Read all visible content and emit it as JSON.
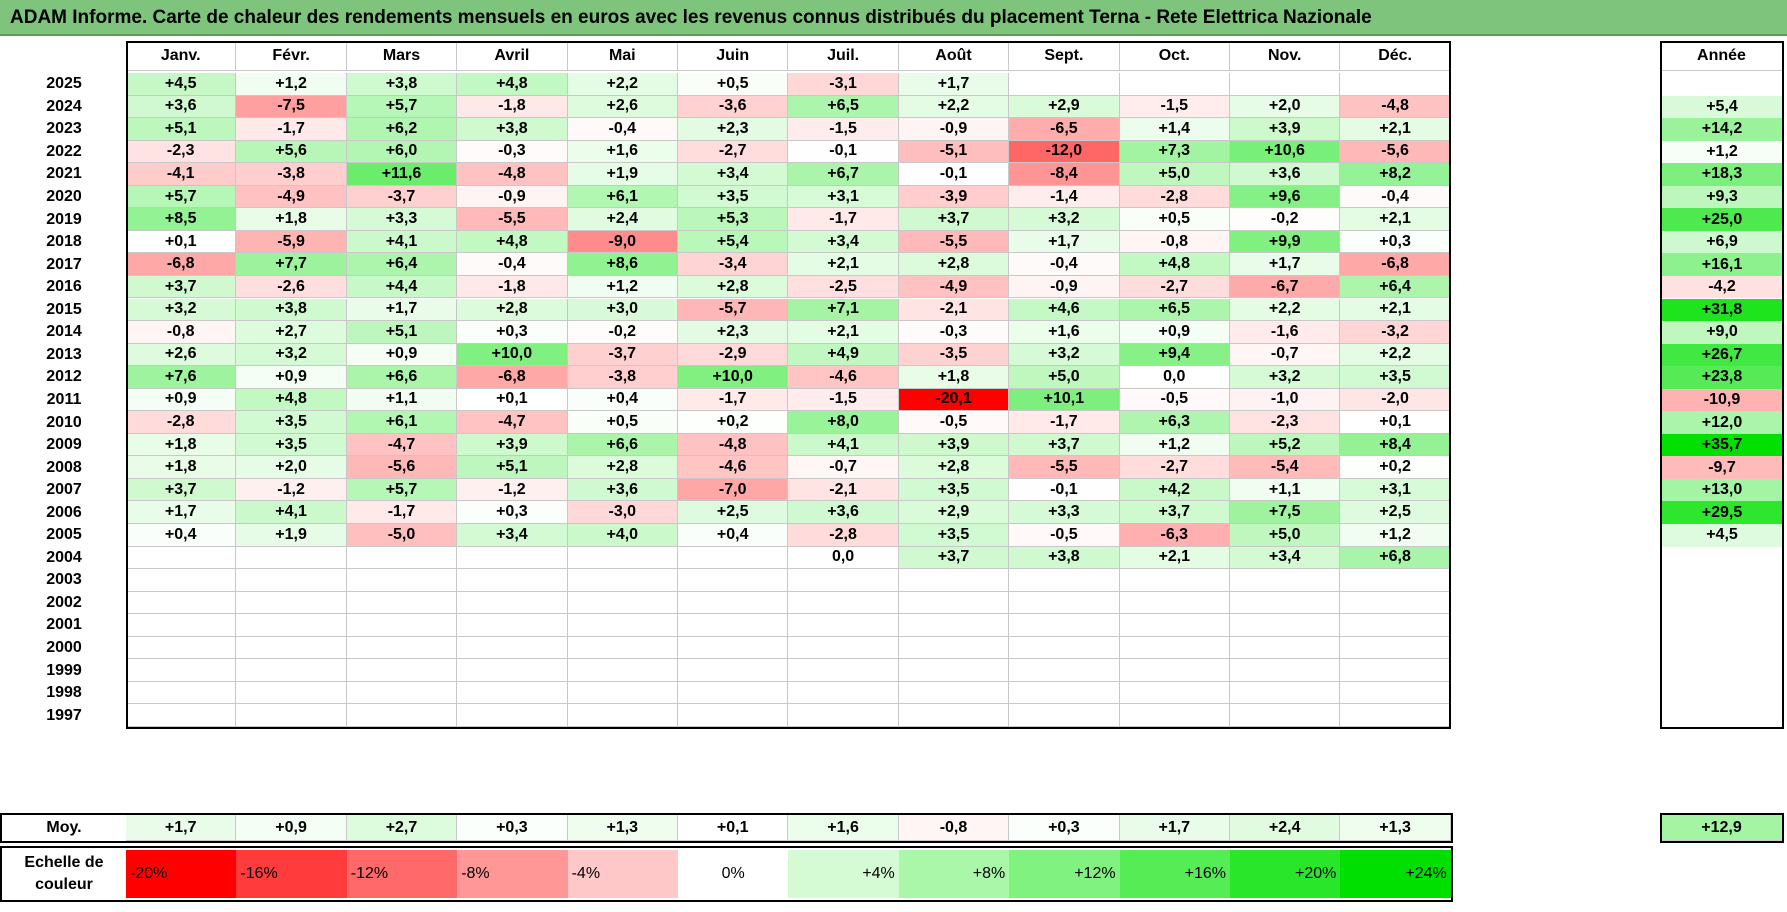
{
  "title": "ADAM Informe. Carte de chaleur des rendements mensuels en euros avec les revenus connus distribués du placement Terna - Rete Elettrica Nazionale",
  "chart_data": {
    "type": "heatmap",
    "title": "ADAM Informe. Carte de chaleur des rendements mensuels en euros avec les revenus connus distribués du placement Terna - Rete Elettrica Nazionale",
    "months": [
      "Janv.",
      "Févr.",
      "Mars",
      "Avril",
      "Mai",
      "Juin",
      "Juil.",
      "Août",
      "Sept.",
      "Oct.",
      "Nov.",
      "Déc."
    ],
    "year_header": "Année",
    "rows": [
      {
        "year": "2025",
        "months": [
          "+4,5",
          "+1,2",
          "+3,8",
          "+4,8",
          "+2,2",
          "+0,5",
          "-3,1",
          "+1,7",
          "",
          "",
          "",
          ""
        ],
        "annual": ""
      },
      {
        "year": "2024",
        "months": [
          "+3,6",
          "-7,5",
          "+5,7",
          "-1,8",
          "+2,6",
          "-3,6",
          "+6,5",
          "+2,2",
          "+2,9",
          "-1,5",
          "+2,0",
          "-4,8"
        ],
        "annual": "+5,4"
      },
      {
        "year": "2023",
        "months": [
          "+5,1",
          "-1,7",
          "+6,2",
          "+3,8",
          "-0,4",
          "+2,3",
          "-1,5",
          "-0,9",
          "-6,5",
          "+1,4",
          "+3,9",
          "+2,1"
        ],
        "annual": "+14,2"
      },
      {
        "year": "2022",
        "months": [
          "-2,3",
          "+5,6",
          "+6,0",
          "-0,3",
          "+1,6",
          "-2,7",
          "-0,1",
          "-5,1",
          "-12,0",
          "+7,3",
          "+10,6",
          "-5,6"
        ],
        "annual": "+1,2"
      },
      {
        "year": "2021",
        "months": [
          "-4,1",
          "-3,8",
          "+11,6",
          "-4,8",
          "+1,9",
          "+3,4",
          "+6,7",
          "-0,1",
          "-8,4",
          "+5,0",
          "+3,6",
          "+8,2"
        ],
        "annual": "+18,3"
      },
      {
        "year": "2020",
        "months": [
          "+5,7",
          "-4,9",
          "-3,7",
          "-0,9",
          "+6,1",
          "+3,5",
          "+3,1",
          "-3,9",
          "-1,4",
          "-2,8",
          "+9,6",
          "-0,4"
        ],
        "annual": "+9,3"
      },
      {
        "year": "2019",
        "months": [
          "+8,5",
          "+1,8",
          "+3,3",
          "-5,5",
          "+2,4",
          "+5,3",
          "-1,7",
          "+3,7",
          "+3,2",
          "+0,5",
          "-0,2",
          "+2,1"
        ],
        "annual": "+25,0"
      },
      {
        "year": "2018",
        "months": [
          "+0,1",
          "-5,9",
          "+4,1",
          "+4,8",
          "-9,0",
          "+5,4",
          "+3,4",
          "-5,5",
          "+1,7",
          "-0,8",
          "+9,9",
          "+0,3"
        ],
        "annual": "+6,9"
      },
      {
        "year": "2017",
        "months": [
          "-6,8",
          "+7,7",
          "+6,4",
          "-0,4",
          "+8,6",
          "-3,4",
          "+2,1",
          "+2,8",
          "-0,4",
          "+4,8",
          "+1,7",
          "-6,8"
        ],
        "annual": "+16,1"
      },
      {
        "year": "2016",
        "months": [
          "+3,7",
          "-2,6",
          "+4,4",
          "-1,8",
          "+1,2",
          "+2,8",
          "-2,5",
          "-4,9",
          "-0,9",
          "-2,7",
          "-6,7",
          "+6,4"
        ],
        "annual": "-4,2"
      },
      {
        "year": "2015",
        "months": [
          "+3,2",
          "+3,8",
          "+1,7",
          "+2,8",
          "+3,0",
          "-5,7",
          "+7,1",
          "-2,1",
          "+4,6",
          "+6,5",
          "+2,2",
          "+2,1"
        ],
        "annual": "+31,8"
      },
      {
        "year": "2014",
        "months": [
          "-0,8",
          "+2,7",
          "+5,1",
          "+0,3",
          "-0,2",
          "+2,3",
          "+2,1",
          "-0,3",
          "+1,6",
          "+0,9",
          "-1,6",
          "-3,2"
        ],
        "annual": "+9,0"
      },
      {
        "year": "2013",
        "months": [
          "+2,6",
          "+3,2",
          "+0,9",
          "+10,0",
          "-3,7",
          "-2,9",
          "+4,9",
          "-3,5",
          "+3,2",
          "+9,4",
          "-0,7",
          "+2,2"
        ],
        "annual": "+26,7"
      },
      {
        "year": "2012",
        "months": [
          "+7,6",
          "+0,9",
          "+6,6",
          "-6,8",
          "-3,8",
          "+10,0",
          "-4,6",
          "+1,8",
          "+5,0",
          "0,0",
          "+3,2",
          "+3,5"
        ],
        "annual": "+23,8"
      },
      {
        "year": "2011",
        "months": [
          "+0,9",
          "+4,8",
          "+1,1",
          "+0,1",
          "+0,4",
          "-1,7",
          "-1,5",
          "-20,1",
          "+10,1",
          "-0,5",
          "-1,0",
          "-2,0"
        ],
        "annual": "-10,9"
      },
      {
        "year": "2010",
        "months": [
          "-2,8",
          "+3,5",
          "+6,1",
          "-4,7",
          "+0,5",
          "+0,2",
          "+8,0",
          "-0,5",
          "-1,7",
          "+6,3",
          "-2,3",
          "+0,1"
        ],
        "annual": "+12,0"
      },
      {
        "year": "2009",
        "months": [
          "+1,8",
          "+3,5",
          "-4,7",
          "+3,9",
          "+6,6",
          "-4,8",
          "+4,1",
          "+3,9",
          "+3,7",
          "+1,2",
          "+5,2",
          "+8,4"
        ],
        "annual": "+35,7"
      },
      {
        "year": "2008",
        "months": [
          "+1,8",
          "+2,0",
          "-5,6",
          "+5,1",
          "+2,8",
          "-4,6",
          "-0,7",
          "+2,8",
          "-5,5",
          "-2,7",
          "-5,4",
          "+0,2"
        ],
        "annual": "-9,7"
      },
      {
        "year": "2007",
        "months": [
          "+3,7",
          "-1,2",
          "+5,7",
          "-1,2",
          "+3,6",
          "-7,0",
          "-2,1",
          "+3,5",
          "-0,1",
          "+4,2",
          "+1,1",
          "+3,1"
        ],
        "annual": "+13,0"
      },
      {
        "year": "2006",
        "months": [
          "+1,7",
          "+4,1",
          "-1,7",
          "+0,3",
          "-3,0",
          "+2,5",
          "+3,6",
          "+2,9",
          "+3,3",
          "+3,7",
          "+7,5",
          "+2,5"
        ],
        "annual": "+29,5"
      },
      {
        "year": "2005",
        "months": [
          "+0,4",
          "+1,9",
          "-5,0",
          "+3,4",
          "+4,0",
          "+0,4",
          "-2,8",
          "+3,5",
          "-0,5",
          "-6,3",
          "+5,0",
          "+1,2"
        ],
        "annual": "+4,5"
      },
      {
        "year": "2004",
        "months": [
          "",
          "",
          "",
          "",
          "",
          "",
          "0,0",
          "+3,7",
          "+3,8",
          "+2,1",
          "+3,4",
          "+6,8"
        ],
        "annual": ""
      },
      {
        "year": "2003",
        "months": [
          "",
          "",
          "",
          "",
          "",
          "",
          "",
          "",
          "",
          "",
          "",
          ""
        ],
        "annual": ""
      },
      {
        "year": "2002",
        "months": [
          "",
          "",
          "",
          "",
          "",
          "",
          "",
          "",
          "",
          "",
          "",
          ""
        ],
        "annual": ""
      },
      {
        "year": "2001",
        "months": [
          "",
          "",
          "",
          "",
          "",
          "",
          "",
          "",
          "",
          "",
          "",
          ""
        ],
        "annual": ""
      },
      {
        "year": "2000",
        "months": [
          "",
          "",
          "",
          "",
          "",
          "",
          "",
          "",
          "",
          "",
          "",
          ""
        ],
        "annual": ""
      },
      {
        "year": "1999",
        "months": [
          "",
          "",
          "",
          "",
          "",
          "",
          "",
          "",
          "",
          "",
          "",
          ""
        ],
        "annual": ""
      },
      {
        "year": "1998",
        "months": [
          "",
          "",
          "",
          "",
          "",
          "",
          "",
          "",
          "",
          "",
          "",
          ""
        ],
        "annual": ""
      },
      {
        "year": "1997",
        "months": [
          "",
          "",
          "",
          "",
          "",
          "",
          "",
          "",
          "",
          "",
          "",
          ""
        ],
        "annual": ""
      }
    ],
    "average": {
      "label": "Moy.",
      "months": [
        "+1,7",
        "+0,9",
        "+2,7",
        "+0,3",
        "+1,3",
        "+0,1",
        "+1,6",
        "-0,8",
        "+0,3",
        "+1,7",
        "+2,4",
        "+1,3"
      ],
      "annual": "+12,9"
    },
    "scale": {
      "label": "Echelle de couleur",
      "stops": [
        {
          "label": "-20%",
          "value": -20,
          "color": "#ff0000"
        },
        {
          "label": "-16%",
          "value": -16,
          "color": "#ff3b3b"
        },
        {
          "label": "-12%",
          "value": -12,
          "color": "#ff6969"
        },
        {
          "label": "-8%",
          "value": -8,
          "color": "#ff9797"
        },
        {
          "label": "-4%",
          "value": -4,
          "color": "#ffc8c8"
        },
        {
          "label": "0%",
          "value": 0,
          "color": "#ffffff"
        },
        {
          "label": "+4%",
          "value": 4,
          "color": "#d4fbd4"
        },
        {
          "label": "+8%",
          "value": 8,
          "color": "#aaf7aa"
        },
        {
          "label": "+12%",
          "value": 12,
          "color": "#80f280"
        },
        {
          "label": "+16%",
          "value": 16,
          "color": "#55ec55"
        },
        {
          "label": "+20%",
          "value": 20,
          "color": "#2ae62a"
        },
        {
          "label": "+24%",
          "value": 24,
          "color": "#00e000"
        }
      ]
    }
  }
}
